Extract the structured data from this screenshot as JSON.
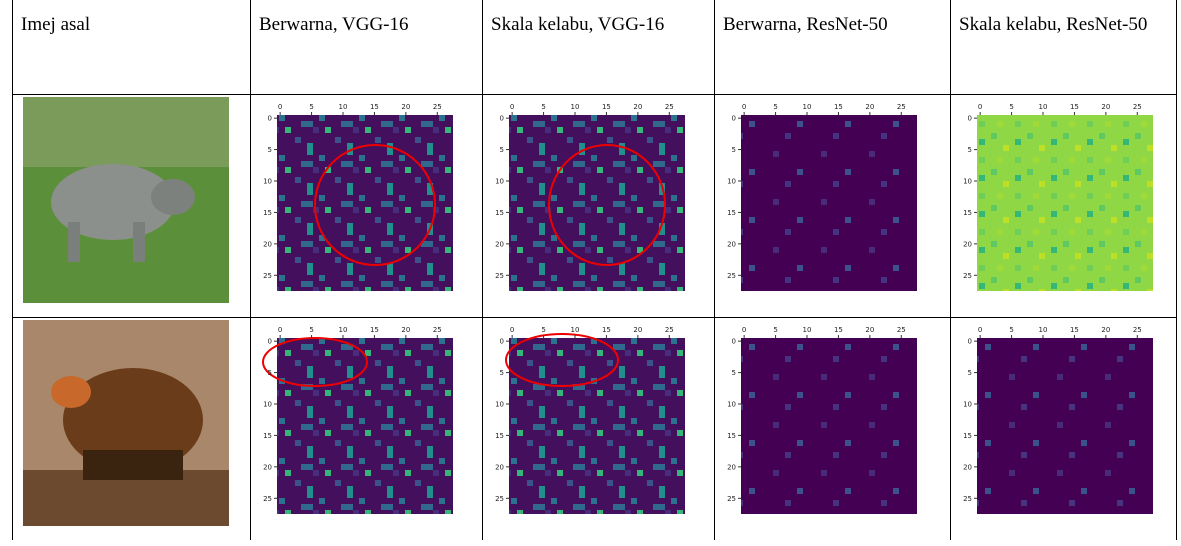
{
  "table": {
    "header": [
      "Imej asal",
      "Berwarna, VGG-16",
      "Skala kelabu, VGG-16",
      "Berwarna, ResNet-50",
      "Skala kelabu, ResNet-50"
    ],
    "rows": [
      {
        "heatmaps": [
          {
            "xticks": [
              0,
              5,
              10,
              15,
              20,
              25
            ],
            "yticks": [
              0,
              5,
              10,
              15,
              20,
              25
            ]
          },
          {
            "xticks": [
              0,
              5,
              10,
              15,
              20,
              25
            ],
            "yticks": [
              0,
              5,
              10,
              15,
              20,
              25
            ]
          },
          {
            "xticks": [
              0,
              5,
              10,
              15,
              20,
              25
            ],
            "yticks": [
              0,
              5,
              10,
              15,
              20,
              25
            ]
          },
          {
            "xticks": [
              0,
              5,
              10,
              15,
              20,
              25
            ],
            "yticks": [
              0,
              5,
              10,
              15,
              20,
              25
            ]
          }
        ]
      },
      {
        "heatmaps": [
          {
            "xticks": [
              0,
              5,
              10,
              15,
              20,
              25
            ],
            "yticks": [
              0,
              5,
              10,
              15,
              20,
              25
            ]
          },
          {
            "xticks": [
              0,
              5,
              10,
              15,
              20,
              25
            ],
            "yticks": [
              0,
              5,
              10,
              15,
              20,
              25
            ]
          },
          {
            "xticks": [
              0,
              5,
              10,
              15,
              20,
              25
            ],
            "yticks": [
              0,
              5,
              10,
              15,
              20,
              25
            ]
          },
          {
            "xticks": [
              0,
              5,
              10,
              15,
              20,
              25
            ],
            "yticks": [
              0,
              5,
              10,
              15,
              20,
              25
            ]
          }
        ]
      }
    ]
  }
}
